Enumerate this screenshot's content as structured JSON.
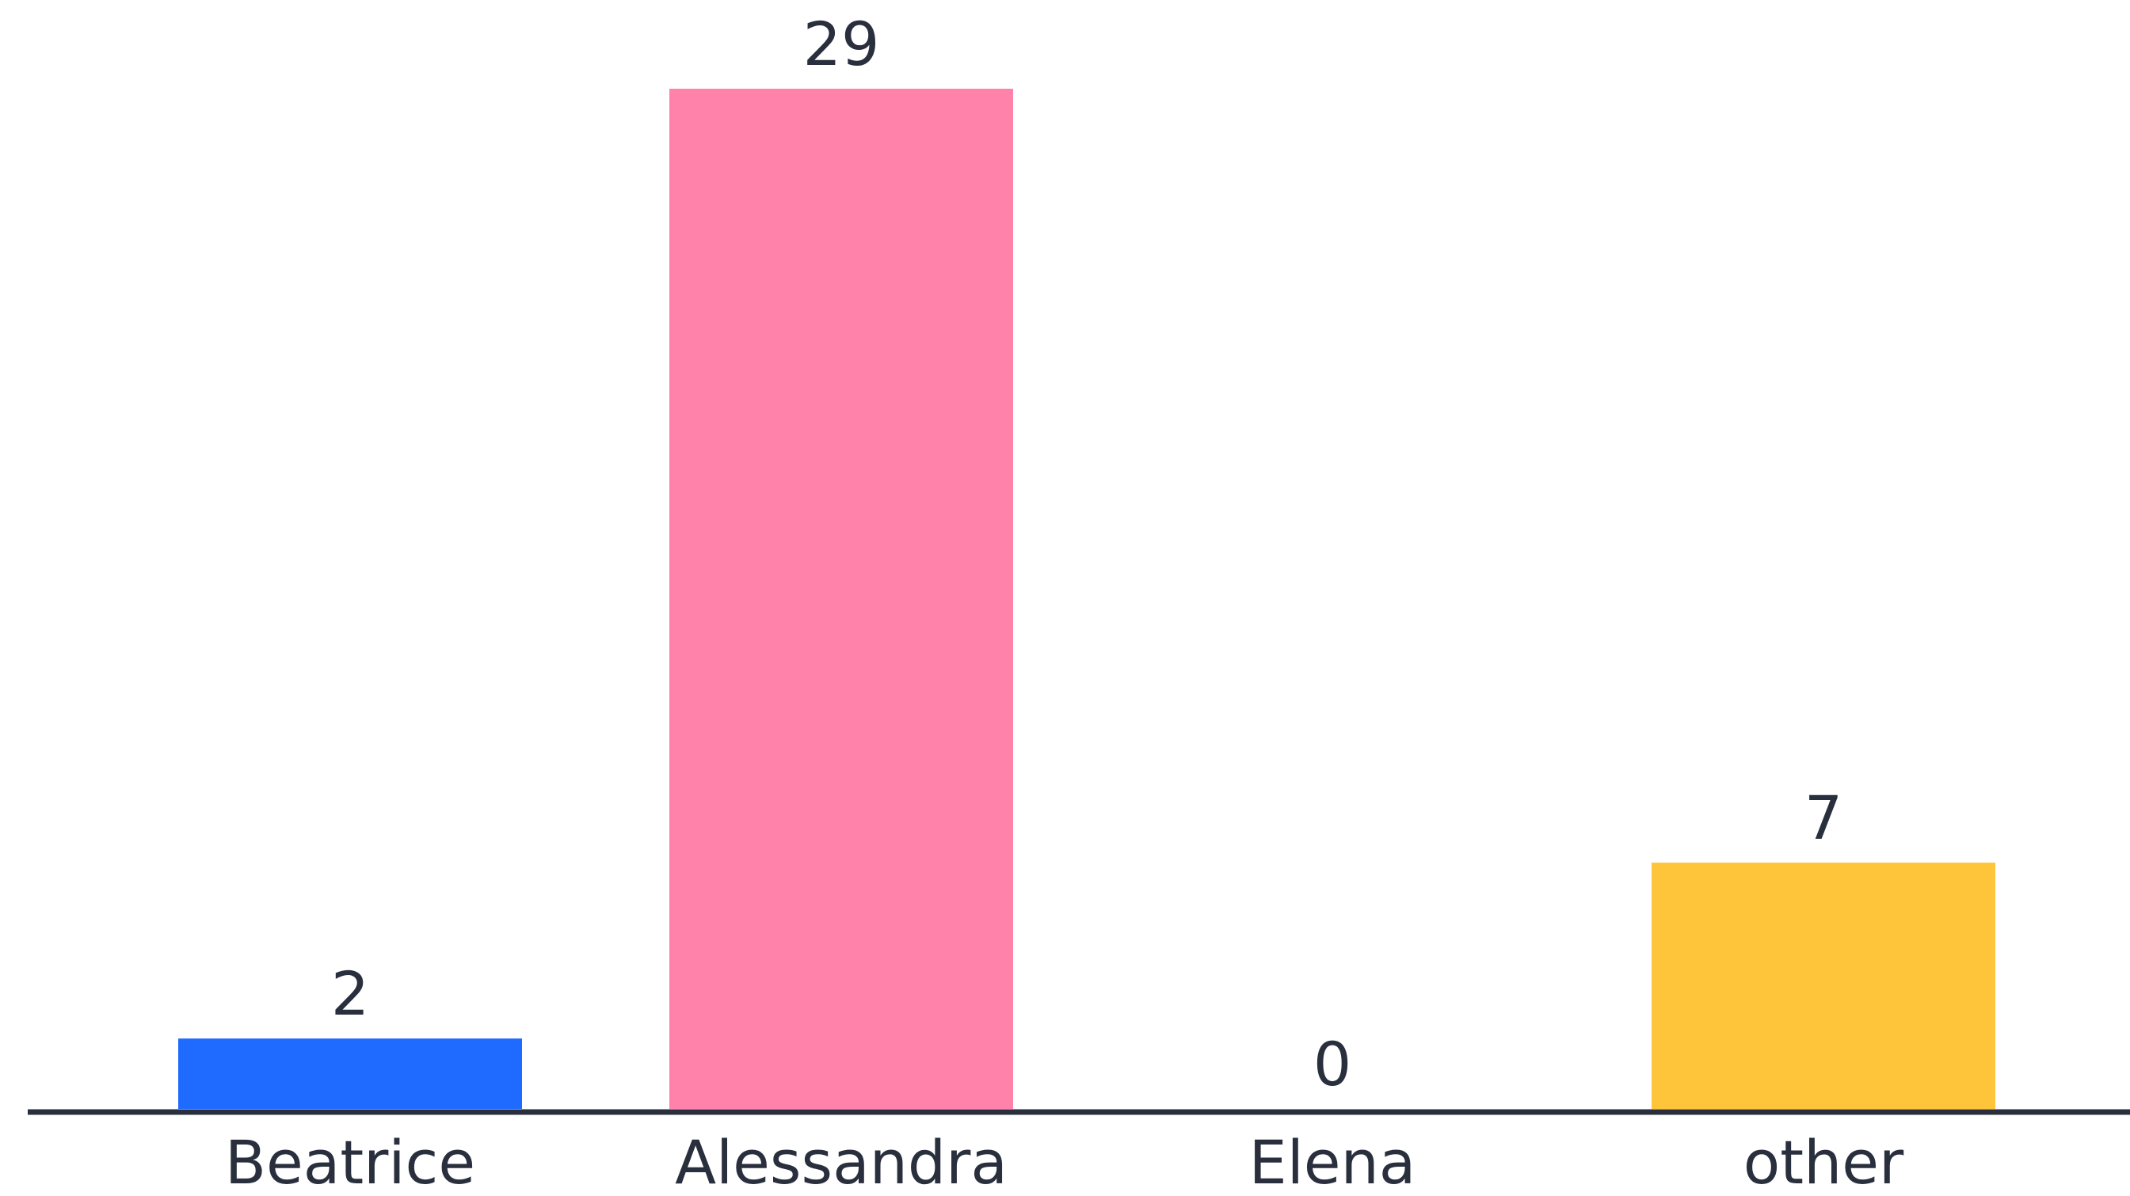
{
  "chart_data": {
    "type": "bar",
    "categories": [
      "Beatrice",
      "Alessandra",
      "Elena",
      "other"
    ],
    "values": [
      2,
      29,
      0,
      7
    ],
    "colors": [
      "#1f6bff",
      "#ff82aa",
      "#ff82aa",
      "#fec43a"
    ],
    "axis_color": "#2a2f3d",
    "title": "",
    "xlabel": "",
    "ylabel": "",
    "ylim": [
      0,
      29
    ],
    "grid": false,
    "legend": "none"
  }
}
